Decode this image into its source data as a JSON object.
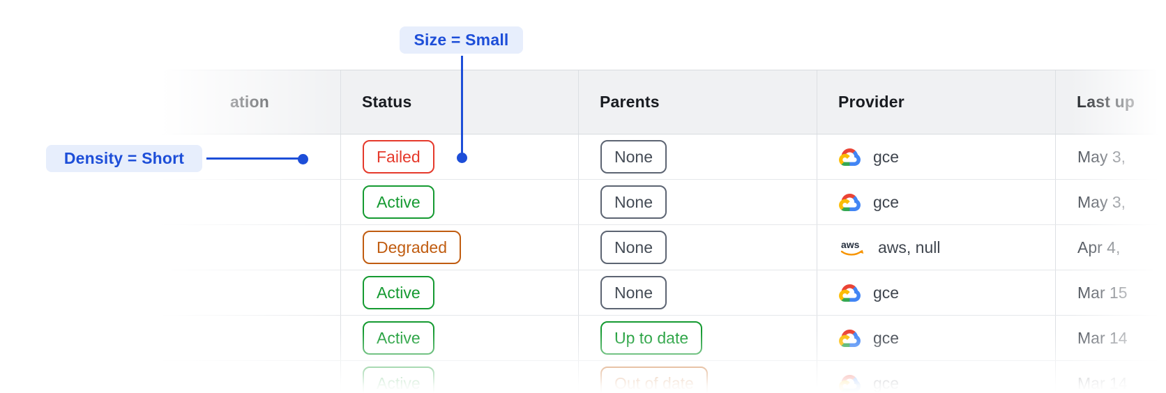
{
  "annotations": {
    "size_label": "Size = Small",
    "density_label": "Density = Short",
    "accent_color": "#1d4ed8",
    "pill_bg": "#e7eefc"
  },
  "table": {
    "header_bg": "#f0f1f3",
    "columns": {
      "name_partial": "ation",
      "status": "Status",
      "parents": "Parents",
      "provider": "Provider",
      "last_updated_partial": "Last up"
    },
    "badge_colors": {
      "red": "#e5392b",
      "green": "#159a31",
      "orange": "#c05c10",
      "gray_border": "#5c6472"
    },
    "rows": [
      {
        "status": "Failed",
        "status_variant": "red",
        "parents": "None",
        "parents_variant": "gray",
        "provider": "gce",
        "provider_icon": "google-cloud-icon",
        "last_updated": "May 3,"
      },
      {
        "status": "Active",
        "status_variant": "green",
        "parents": "None",
        "parents_variant": "gray",
        "provider": "gce",
        "provider_icon": "google-cloud-icon",
        "last_updated": "May 3,"
      },
      {
        "status": "Degraded",
        "status_variant": "orange",
        "parents": "None",
        "parents_variant": "gray",
        "provider": "aws, null",
        "provider_icon": "aws-icon",
        "last_updated": "Apr 4,"
      },
      {
        "status": "Active",
        "status_variant": "green",
        "parents": "None",
        "parents_variant": "gray",
        "provider": "gce",
        "provider_icon": "google-cloud-icon",
        "last_updated": "Mar 15"
      },
      {
        "status": "Active",
        "status_variant": "green",
        "parents": "Up to date",
        "parents_variant": "green",
        "provider": "gce",
        "provider_icon": "google-cloud-icon",
        "last_updated": "Mar 14"
      },
      {
        "status": "Active",
        "status_variant": "green",
        "parents": "Out of date",
        "parents_variant": "orange",
        "provider": "gce",
        "provider_icon": "google-cloud-icon",
        "last_updated": "Mar 14"
      }
    ]
  }
}
